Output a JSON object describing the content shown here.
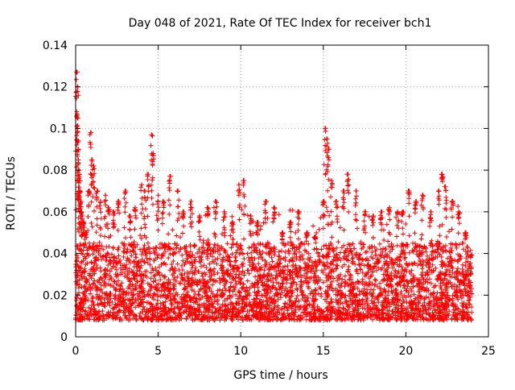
{
  "chart_data": {
    "type": "scatter",
    "title": "Day 048 of 2021, Rate Of TEC Index for receiver bch1",
    "xlabel": "GPS time / hours",
    "ylabel": "ROTI / TECUs",
    "xlim": [
      0,
      25
    ],
    "ylim": [
      0,
      0.14
    ],
    "x_ticks": [
      0,
      5,
      10,
      15,
      20,
      25
    ],
    "x_tick_labels": [
      "0",
      "5",
      "10",
      "15",
      "20",
      "25"
    ],
    "y_ticks": [
      0,
      0.02,
      0.04,
      0.06,
      0.08,
      0.1,
      0.12,
      0.14
    ],
    "y_tick_labels": [
      "0",
      "0.02",
      "0.04",
      "0.06",
      "0.08",
      "0.1",
      "0.12",
      "0.14"
    ],
    "grid": true,
    "marker": "plus",
    "series": [
      {
        "name": "ROTI",
        "color": "#ff0000",
        "x": [
          0.05,
          0.1,
          0.1,
          0.12,
          0.15,
          0.18,
          0.2,
          0.22,
          0.25,
          0.3,
          0.35,
          0.4,
          0.5,
          0.6,
          0.8,
          0.9,
          1.0,
          1.1,
          1.3,
          1.5,
          1.8,
          2.0,
          2.3,
          2.6,
          3.0,
          3.3,
          3.6,
          4.0,
          4.2,
          4.4,
          4.6,
          4.7,
          5.0,
          5.3,
          5.7,
          6.2,
          6.5,
          7.0,
          7.5,
          8.0,
          8.5,
          9.0,
          9.5,
          9.9,
          10.2,
          10.6,
          11.0,
          11.5,
          12.0,
          12.5,
          13.0,
          13.5,
          14.0,
          14.5,
          15.0,
          15.1,
          15.2,
          15.3,
          15.5,
          15.8,
          16.2,
          16.5,
          17.0,
          17.5,
          18.0,
          18.5,
          19.0,
          19.5,
          19.8,
          20.2,
          20.6,
          21.0,
          21.5,
          22.0,
          22.2,
          22.4,
          22.8,
          23.2,
          23.6,
          23.9
        ],
        "y": [
          0.127,
          0.12,
          0.105,
          0.1,
          0.094,
          0.09,
          0.08,
          0.075,
          0.07,
          0.065,
          0.06,
          0.058,
          0.055,
          0.05,
          0.07,
          0.098,
          0.085,
          0.082,
          0.07,
          0.065,
          0.068,
          0.062,
          0.06,
          0.065,
          0.07,
          0.058,
          0.062,
          0.073,
          0.07,
          0.078,
          0.097,
          0.088,
          0.068,
          0.065,
          0.077,
          0.07,
          0.06,
          0.065,
          0.058,
          0.062,
          0.065,
          0.06,
          0.055,
          0.073,
          0.075,
          0.058,
          0.055,
          0.065,
          0.062,
          0.05,
          0.055,
          0.06,
          0.05,
          0.048,
          0.065,
          0.1,
          0.095,
          0.09,
          0.075,
          0.065,
          0.07,
          0.078,
          0.07,
          0.06,
          0.058,
          0.06,
          0.062,
          0.06,
          0.06,
          0.07,
          0.065,
          0.068,
          0.06,
          0.07,
          0.078,
          0.072,
          0.065,
          0.06,
          0.05,
          0.03
        ]
      }
    ],
    "dense_band": {
      "x_range": [
        0,
        24
      ],
      "y_typical_low": 0.008,
      "y_typical_high": 0.045,
      "y_min": 0.004,
      "sample_count": 4200
    }
  }
}
